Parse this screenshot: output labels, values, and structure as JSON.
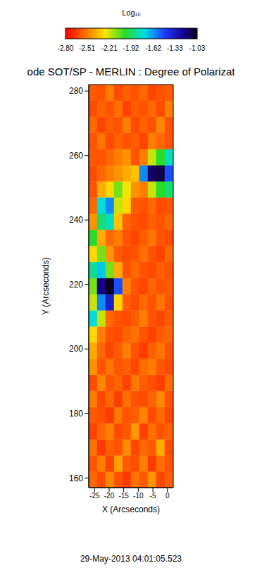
{
  "chart_data": {
    "type": "heatmap",
    "title": "ode SOT/SP - MERLIN : Degree of Polarizat",
    "subtitle": "29-May-2013 04:01:05.523",
    "x_label": "X (Arcseconds)",
    "y_label": "Y (Arcseconds)",
    "xlim": [
      -27,
      2
    ],
    "xticks": [
      -25,
      -20,
      -15,
      -10,
      -5,
      0
    ],
    "ylim": [
      157,
      282
    ],
    "yticks": [
      160,
      180,
      200,
      220,
      240,
      260,
      280
    ],
    "color_bar": {
      "label": "Log₁₀",
      "range": [
        -2.8,
        -1.03
      ],
      "ticks": [
        {
          "value": -2.8,
          "label": "-2.80"
        },
        -2.51,
        -2.21,
        -1.92,
        -1.62,
        -1.33,
        -1.03
      ]
    },
    "heatmap": {
      "x_edges": [
        -27,
        -24.1,
        -21.2,
        -18.3,
        -15.4,
        -12.5,
        -9.6,
        -6.7,
        -3.8,
        -0.9,
        2
      ],
      "y_edges": [
        157,
        162,
        167,
        172,
        177,
        182,
        187,
        192,
        197,
        202,
        207,
        212,
        217,
        222,
        227,
        232,
        237,
        242,
        247,
        252,
        257,
        262,
        267,
        272,
        277,
        282
      ],
      "values": [
        [
          -2.55,
          -2.62,
          -2.48,
          -2.6,
          -2.66,
          -2.52,
          -2.58,
          -2.45,
          -2.63,
          -2.57
        ],
        [
          -2.6,
          -2.5,
          -2.64,
          -2.42,
          -2.58,
          -2.61,
          -2.5,
          -2.66,
          -2.54,
          -2.6
        ],
        [
          -2.52,
          -2.66,
          -2.57,
          -2.6,
          -2.47,
          -2.63,
          -2.55,
          -2.58,
          -2.4,
          -2.62
        ],
        [
          -2.64,
          -2.55,
          -2.5,
          -2.62,
          -2.59,
          -2.44,
          -2.65,
          -2.53,
          -2.6,
          -2.56
        ],
        [
          -2.58,
          -2.61,
          -2.66,
          -2.51,
          -2.6,
          -2.57,
          -2.49,
          -2.62,
          -2.55,
          -2.63
        ],
        [
          -2.5,
          -2.63,
          -2.55,
          -2.65,
          -2.53,
          -2.6,
          -2.62,
          -2.56,
          -2.48,
          -2.6
        ],
        [
          -2.62,
          -2.48,
          -2.6,
          -2.56,
          -2.64,
          -2.51,
          -2.58,
          -2.61,
          -2.65,
          -2.54
        ],
        [
          -2.45,
          -2.6,
          -2.52,
          -2.6,
          -2.57,
          -2.63,
          -2.54,
          -2.5,
          -2.59,
          -2.62
        ],
        [
          -2.4,
          -2.55,
          -2.63,
          -2.58,
          -2.5,
          -2.6,
          -2.66,
          -2.57,
          -2.52,
          -2.6
        ],
        [
          -2.3,
          -2.5,
          -2.6,
          -2.62,
          -2.56,
          -2.53,
          -2.6,
          -2.64,
          -2.58,
          -2.55
        ],
        [
          -1.75,
          -2.2,
          -2.55,
          -2.6,
          -2.62,
          -2.57,
          -2.5,
          -2.6,
          -2.63,
          -2.58
        ],
        [
          -2.2,
          -1.6,
          -1.35,
          -2.3,
          -2.58,
          -2.62,
          -2.55,
          -2.6,
          -2.52,
          -2.6
        ],
        [
          -2.1,
          -1.2,
          -1.05,
          -1.5,
          -2.5,
          -2.6,
          -2.63,
          -2.56,
          -2.6,
          -2.58
        ],
        [
          -1.85,
          -1.7,
          -2.1,
          -2.4,
          -2.6,
          -2.55,
          -2.6,
          -2.62,
          -2.57,
          -2.6
        ],
        [
          -2.3,
          -2.1,
          -2.45,
          -2.58,
          -2.62,
          -2.6,
          -2.53,
          -2.6,
          -2.64,
          -2.55
        ],
        [
          -2.0,
          -2.4,
          -2.55,
          -2.5,
          -2.6,
          -2.63,
          -2.58,
          -2.52,
          -2.6,
          -2.62
        ],
        [
          -2.45,
          -1.9,
          -1.8,
          -2.35,
          -2.56,
          -2.6,
          -2.62,
          -2.57,
          -2.6,
          -2.55
        ],
        [
          -2.55,
          -1.75,
          -1.6,
          -2.2,
          -2.3,
          -2.58,
          -2.6,
          -2.55,
          -2.62,
          -2.6
        ],
        [
          -2.6,
          -2.4,
          -2.3,
          -2.1,
          -2.25,
          -2.45,
          -2.5,
          -2.2,
          -2.0,
          -1.9
        ],
        [
          -2.62,
          -2.55,
          -2.5,
          -2.45,
          -2.4,
          -2.35,
          -1.6,
          -1.15,
          -1.1,
          -1.5
        ],
        [
          -2.58,
          -2.6,
          -2.55,
          -2.5,
          -2.45,
          -2.6,
          -2.5,
          -2.2,
          -2.0,
          -1.8
        ],
        [
          -2.6,
          -2.52,
          -2.62,
          -2.56,
          -2.6,
          -2.58,
          -2.63,
          -2.5,
          -2.55,
          -2.6
        ],
        [
          -2.55,
          -2.63,
          -2.58,
          -2.6,
          -2.5,
          -2.62,
          -2.57,
          -2.6,
          -2.48,
          -2.6
        ],
        [
          -2.62,
          -2.56,
          -2.6,
          -2.53,
          -2.64,
          -2.58,
          -2.6,
          -2.55,
          -2.62,
          -2.5
        ],
        [
          -2.58,
          -2.6,
          -2.5,
          -2.62,
          -2.57,
          -2.6,
          -2.55,
          -2.63,
          -2.6,
          -2.58
        ]
      ]
    }
  }
}
